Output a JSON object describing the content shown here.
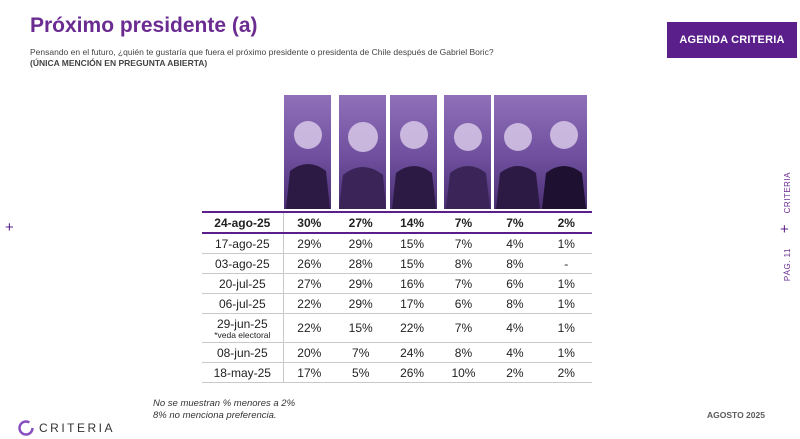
{
  "header": {
    "title": "Próximo presidente (a)",
    "subtitle": "Pensando en el futuro, ¿quién te gustaría que fuera el próximo presidente o presidenta de Chile después de Gabriel Boric?",
    "subnote": "(ÚNICA MENCIÓN EN PREGUNTA ABIERTA)",
    "brand_button": "AGENDA CRITERIA"
  },
  "side": {
    "brand": "CRITERIA",
    "page": "PÁG. 11"
  },
  "table": {
    "rows": [
      {
        "date": "24-ago-25",
        "values": [
          "30%",
          "27%",
          "14%",
          "7%",
          "7%",
          "2%"
        ]
      },
      {
        "date": "17-ago-25",
        "values": [
          "29%",
          "29%",
          "15%",
          "7%",
          "4%",
          "1%"
        ]
      },
      {
        "date": "03-ago-25",
        "values": [
          "26%",
          "28%",
          "15%",
          "8%",
          "8%",
          "-"
        ]
      },
      {
        "date": "20-jul-25",
        "values": [
          "27%",
          "29%",
          "16%",
          "7%",
          "6%",
          "1%"
        ]
      },
      {
        "date": "06-jul-25",
        "values": [
          "22%",
          "29%",
          "17%",
          "6%",
          "8%",
          "1%"
        ]
      },
      {
        "date": "29-jun-25",
        "note": "*veda electoral",
        "values": [
          "22%",
          "15%",
          "22%",
          "7%",
          "4%",
          "1%"
        ]
      },
      {
        "date": "08-jun-25",
        "values": [
          "20%",
          "7%",
          "24%",
          "8%",
          "4%",
          "1%"
        ]
      },
      {
        "date": "18-may-25",
        "values": [
          "17%",
          "5%",
          "26%",
          "10%",
          "2%",
          "2%"
        ]
      }
    ]
  },
  "footer": {
    "note1": "No se muestran % menores a 2%",
    "note2": "8% no menciona preferencia.",
    "date": "AGOSTO 2025",
    "logo": "CRITERIA"
  },
  "colors": {
    "brand": "#5a1f8a",
    "title": "#6b2c91"
  }
}
